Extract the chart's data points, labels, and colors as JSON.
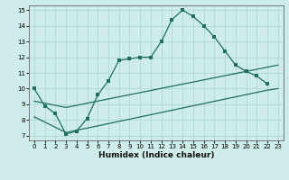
{
  "xlabel": "Humidex (Indice chaleur)",
  "bg_color": "#ceecea",
  "grid_color": "#add8d5",
  "line_color": "#1e6e62",
  "xlim": [
    -0.5,
    23.5
  ],
  "ylim": [
    6.7,
    15.3
  ],
  "xticks": [
    0,
    1,
    2,
    3,
    4,
    5,
    6,
    7,
    8,
    9,
    10,
    11,
    12,
    13,
    14,
    15,
    16,
    17,
    18,
    19,
    20,
    21,
    22,
    23
  ],
  "yticks": [
    7,
    8,
    9,
    10,
    11,
    12,
    13,
    14,
    15
  ],
  "curve1_x": [
    0,
    1,
    2,
    3,
    4,
    5,
    6,
    7,
    8,
    9,
    10,
    11,
    12,
    13,
    14,
    15,
    16,
    17,
    18,
    19,
    20,
    21,
    22
  ],
  "curve1_y": [
    10.0,
    8.9,
    8.4,
    7.1,
    7.3,
    8.1,
    9.6,
    10.5,
    11.8,
    11.9,
    12.0,
    12.0,
    13.0,
    14.4,
    15.0,
    14.6,
    14.0,
    13.3,
    12.4,
    11.5,
    11.1,
    10.8,
    10.3
  ],
  "curve2_x": [
    0,
    3,
    23
  ],
  "curve2_y": [
    9.2,
    8.8,
    11.5
  ],
  "curve3_x": [
    0,
    3,
    22,
    23
  ],
  "curve3_y": [
    8.2,
    7.2,
    9.9,
    10.0
  ]
}
